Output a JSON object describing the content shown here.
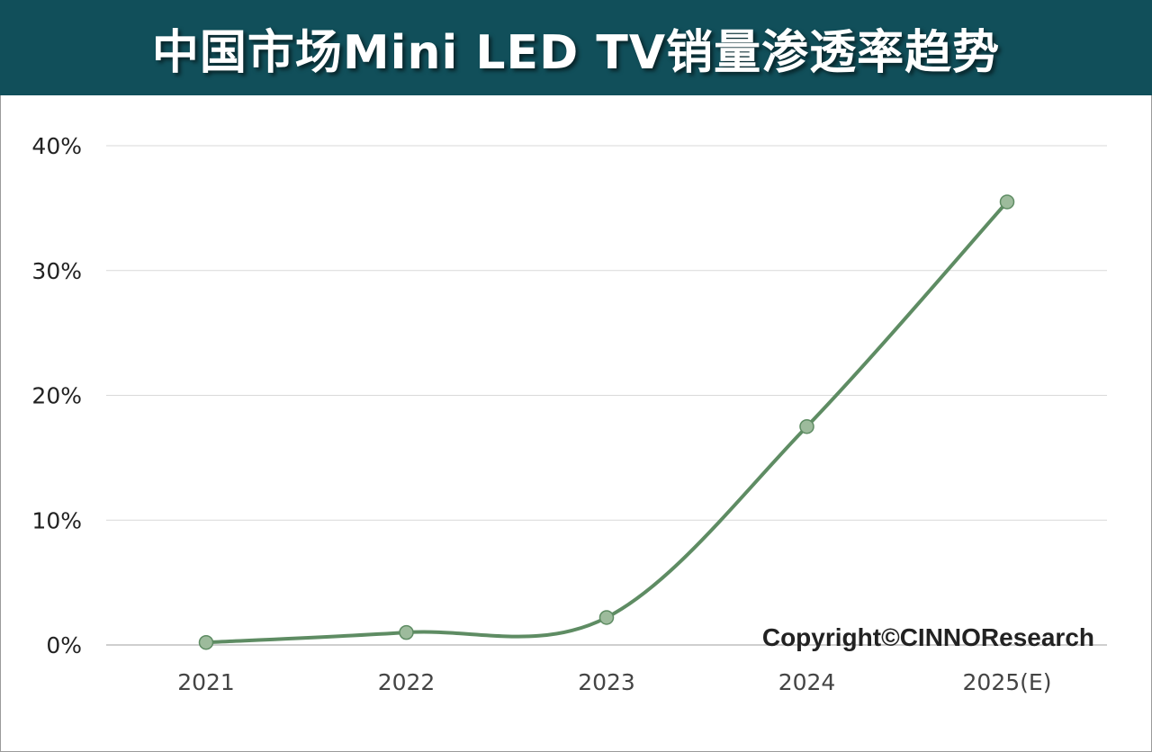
{
  "title": "中国市场Mini LED TV销量渗透率趋势",
  "copyright": "Copyright©CINNOResearch",
  "colors": {
    "header_bg": "#114f5a",
    "line": "#5e8c63",
    "marker_fill": "#9dbb9c",
    "gridline": "#d9d9d9"
  },
  "chart_data": {
    "type": "line",
    "categories": [
      "2021",
      "2022",
      "2023",
      "2024",
      "2025(E)"
    ],
    "series": [
      {
        "values": [
          0.2,
          1.0,
          2.2,
          17.5,
          35.5
        ]
      }
    ],
    "ylim": [
      0,
      40
    ],
    "yticks": [
      "0%",
      "10%",
      "20%",
      "30%",
      "40%"
    ],
    "grid": true,
    "smooth": true
  }
}
